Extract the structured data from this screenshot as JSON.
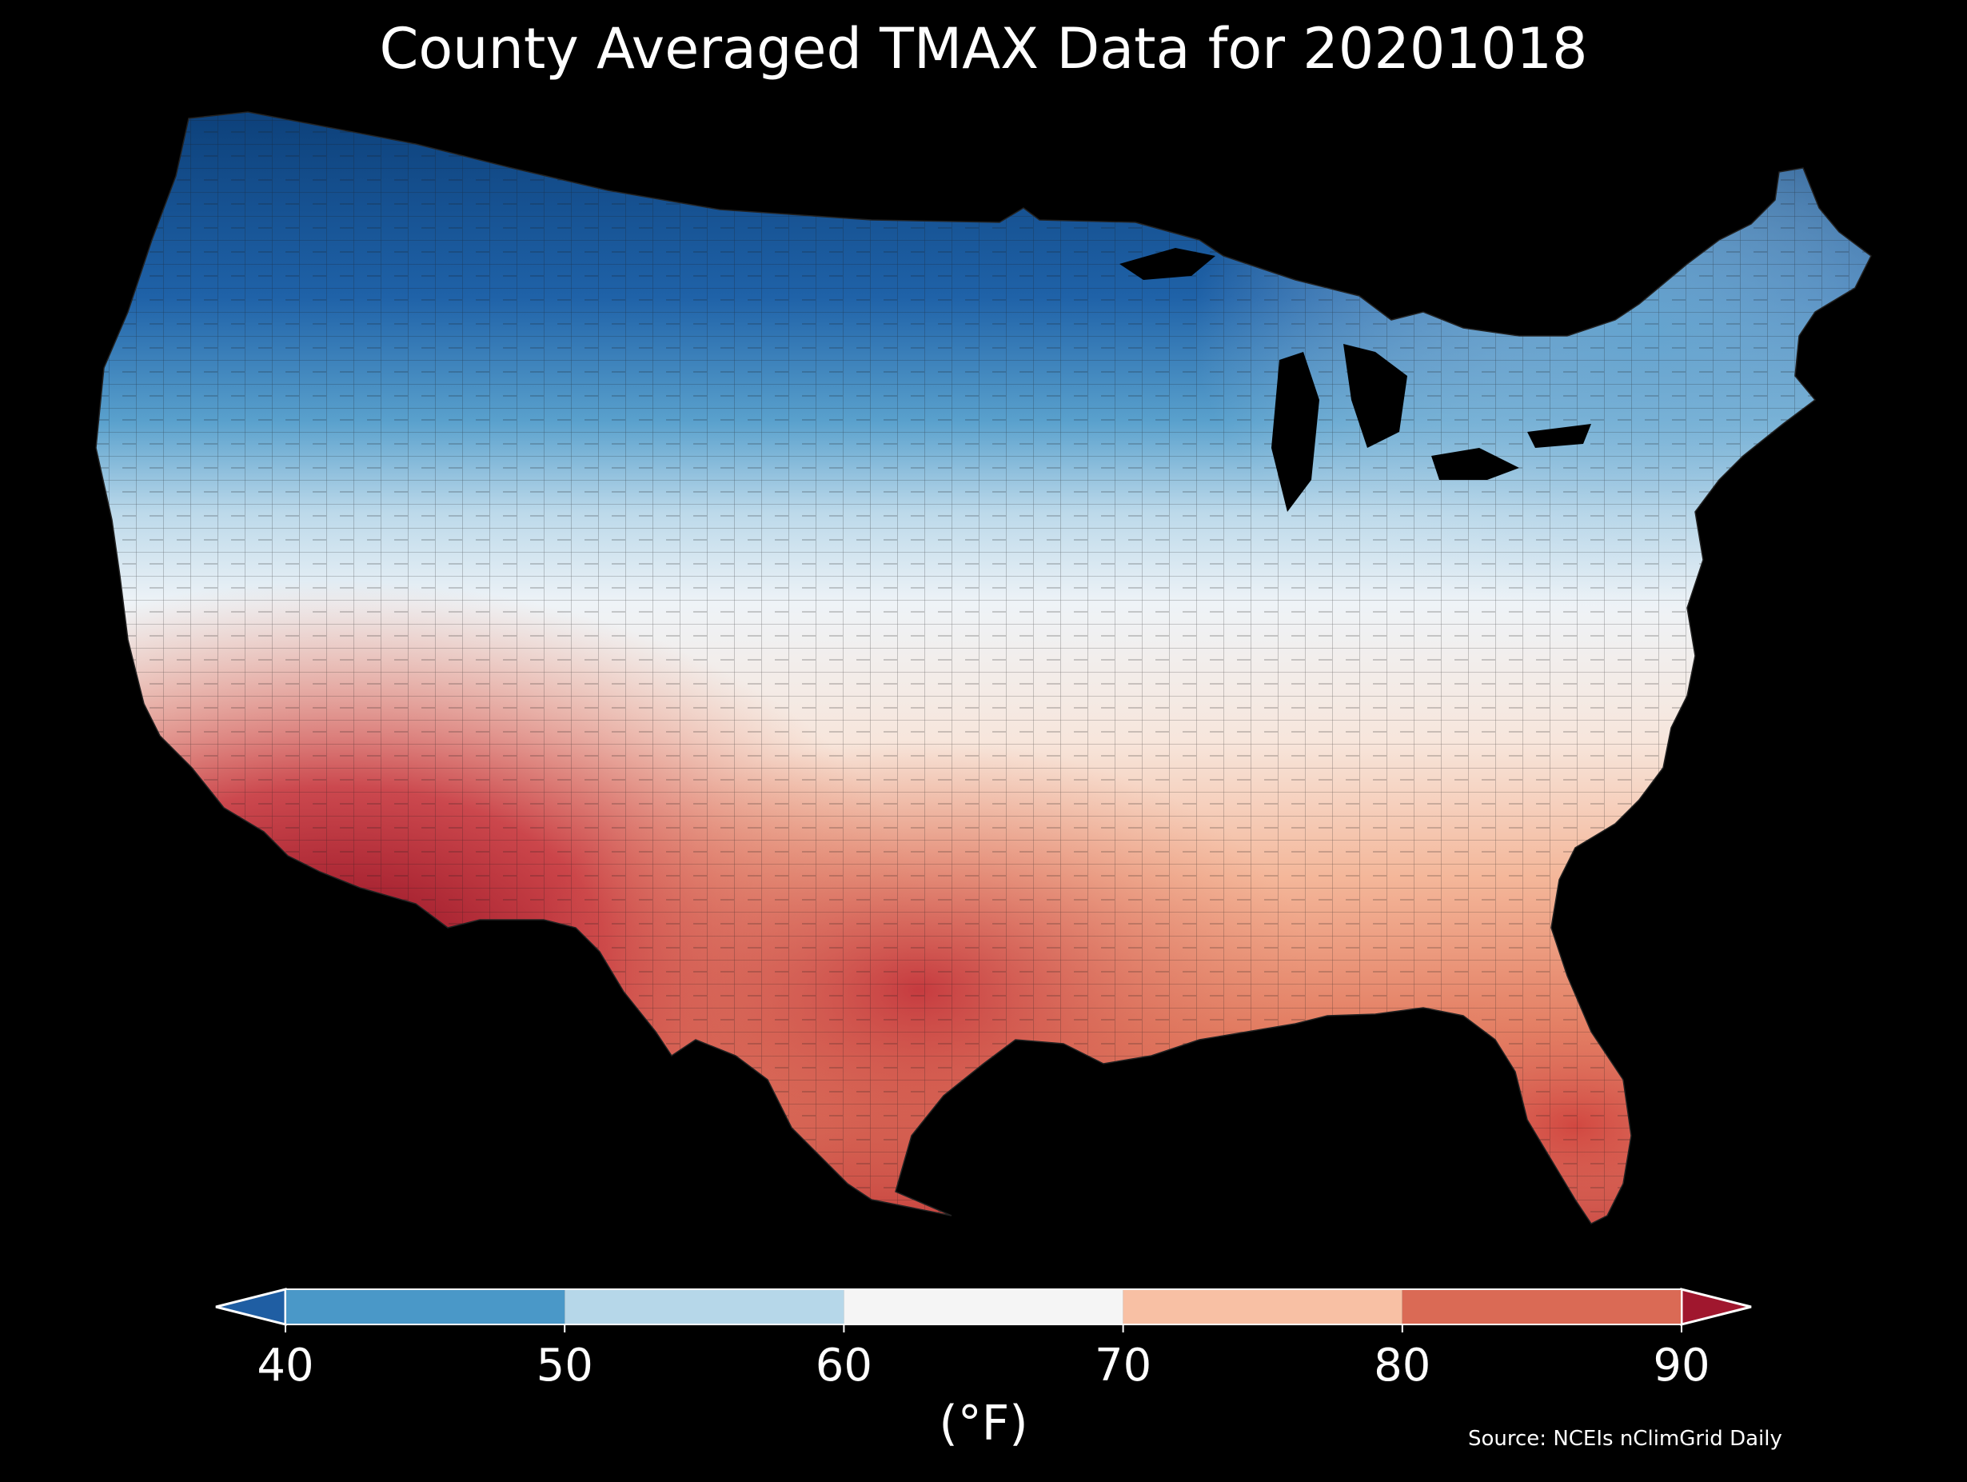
{
  "title": "County Averaged TMAX Data for 20201018",
  "source": "Source: NCEIs nClimGrid Daily",
  "colorbar": {
    "units": "(°F)",
    "ticks": [
      "40",
      "50",
      "60",
      "70",
      "80",
      "90"
    ],
    "tick_values": [
      40,
      50,
      60,
      70,
      80,
      90
    ],
    "range": [
      40,
      90
    ],
    "extend": "both",
    "bins": [
      {
        "from": 40,
        "to": 50,
        "color": "#4a98c8"
      },
      {
        "from": 50,
        "to": 60,
        "color": "#b6d7e9"
      },
      {
        "from": 60,
        "to": 70,
        "color": "#f5f5f5"
      },
      {
        "from": 70,
        "to": 80,
        "color": "#f8c0a4"
      },
      {
        "from": 80,
        "to": 90,
        "color": "#da6a55"
      }
    ],
    "under_color": "#1f5ea3",
    "over_color": "#a0172e"
  },
  "map": {
    "background": "#000000",
    "region": "Contiguous United States",
    "colormap": "RdBu_r"
  }
}
